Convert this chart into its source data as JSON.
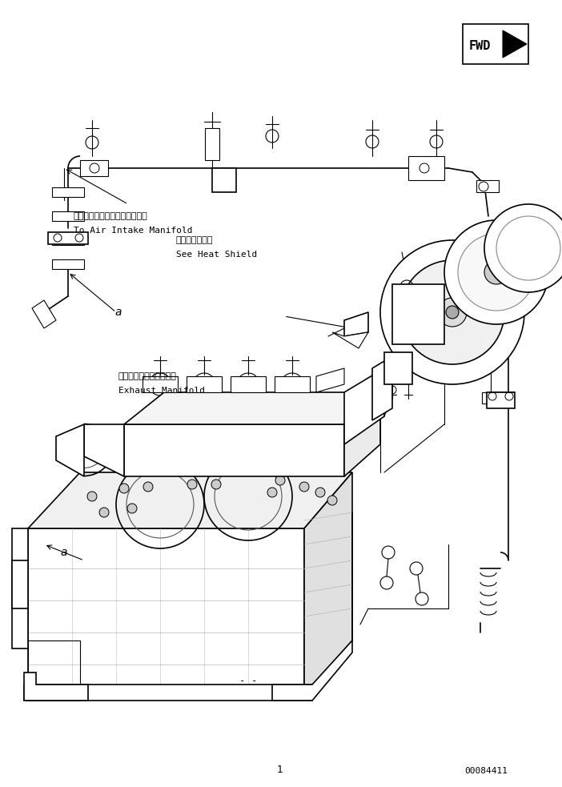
{
  "background_color": "#ffffff",
  "line_color": "#000000",
  "text_color": "#000000",
  "part_number": "00084411",
  "fwd_label": "FWD",
  "fig_width": 7.02,
  "fig_height": 9.83,
  "dpi": 100,
  "annotations": {
    "air_intake_jp": "エアーインテークマニホルドヘ",
    "air_intake_en": "To Air Intake Manifold",
    "heat_shield_jp": "ヒートシールド",
    "heat_shield_en": "See Heat Shield",
    "exhaust_jp": "エキゾーストマニホルド",
    "exhaust_en": "Exhaust Manifold"
  }
}
